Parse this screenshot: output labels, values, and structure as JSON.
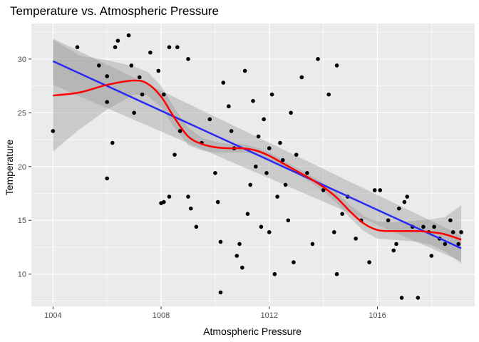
{
  "chart_data": {
    "type": "scatter",
    "title": "Temperature vs. Atmospheric Pressure",
    "xlabel": "Atmospheric Pressure",
    "ylabel": "Temperature",
    "xlim": [
      1003.2,
      1019.6
    ],
    "ylim": [
      7.0,
      33.3
    ],
    "x_ticks": [
      1004,
      1008,
      1012,
      1016
    ],
    "y_ticks": [
      10,
      15,
      20,
      25,
      30
    ],
    "grid": true,
    "legend": "none",
    "colors": {
      "panel_background": "#ebebeb",
      "grid_major": "#ffffff",
      "points": "#000000",
      "linear_fit": "#2a2af2",
      "smooth_fit": "#ff0000",
      "confidence_band": "#999999"
    },
    "points": [
      [
        1004.0,
        23.3
      ],
      [
        1004.9,
        31.1
      ],
      [
        1005.7,
        29.4
      ],
      [
        1006.0,
        28.4
      ],
      [
        1006.0,
        26.0
      ],
      [
        1006.0,
        18.9
      ],
      [
        1006.2,
        22.2
      ],
      [
        1006.3,
        31.1
      ],
      [
        1006.4,
        31.7
      ],
      [
        1006.8,
        32.2
      ],
      [
        1006.9,
        29.4
      ],
      [
        1007.0,
        25.0
      ],
      [
        1007.2,
        28.3
      ],
      [
        1007.3,
        26.7
      ],
      [
        1007.6,
        30.6
      ],
      [
        1007.9,
        28.9
      ],
      [
        1008.1,
        26.7
      ],
      [
        1008.3,
        31.1
      ],
      [
        1008.0,
        16.6
      ],
      [
        1008.1,
        16.7
      ],
      [
        1008.3,
        17.2
      ],
      [
        1008.5,
        21.1
      ],
      [
        1008.7,
        23.3
      ],
      [
        1008.6,
        31.1
      ],
      [
        1009.0,
        30.0
      ],
      [
        1009.0,
        17.2
      ],
      [
        1009.1,
        16.1
      ],
      [
        1009.3,
        14.4
      ],
      [
        1009.5,
        22.2
      ],
      [
        1009.8,
        24.4
      ],
      [
        1010.0,
        19.4
      ],
      [
        1010.1,
        16.7
      ],
      [
        1010.2,
        13.0
      ],
      [
        1010.2,
        8.3
      ],
      [
        1010.3,
        27.8
      ],
      [
        1010.5,
        25.6
      ],
      [
        1010.6,
        23.3
      ],
      [
        1010.7,
        21.7
      ],
      [
        1010.8,
        11.7
      ],
      [
        1010.9,
        12.8
      ],
      [
        1011.0,
        10.6
      ],
      [
        1011.1,
        28.9
      ],
      [
        1011.2,
        15.6
      ],
      [
        1011.3,
        18.3
      ],
      [
        1011.4,
        26.1
      ],
      [
        1011.5,
        20.0
      ],
      [
        1011.6,
        22.8
      ],
      [
        1011.7,
        14.4
      ],
      [
        1011.8,
        24.4
      ],
      [
        1011.9,
        19.4
      ],
      [
        1012.0,
        21.7
      ],
      [
        1012.0,
        13.9
      ],
      [
        1012.1,
        26.7
      ],
      [
        1012.2,
        10.0
      ],
      [
        1012.3,
        17.2
      ],
      [
        1012.4,
        22.2
      ],
      [
        1012.5,
        20.6
      ],
      [
        1012.6,
        18.3
      ],
      [
        1012.7,
        15.0
      ],
      [
        1012.8,
        25.0
      ],
      [
        1012.9,
        11.1
      ],
      [
        1013.0,
        21.1
      ],
      [
        1013.2,
        28.3
      ],
      [
        1013.4,
        19.4
      ],
      [
        1013.6,
        12.8
      ],
      [
        1013.8,
        30.0
      ],
      [
        1014.0,
        17.8
      ],
      [
        1014.2,
        26.7
      ],
      [
        1014.4,
        13.9
      ],
      [
        1014.5,
        29.4
      ],
      [
        1014.5,
        10.0
      ],
      [
        1014.7,
        15.6
      ],
      [
        1014.9,
        17.2
      ],
      [
        1015.2,
        13.3
      ],
      [
        1015.4,
        15.0
      ],
      [
        1015.7,
        11.1
      ],
      [
        1015.9,
        17.8
      ],
      [
        1016.1,
        17.8
      ],
      [
        1016.4,
        15.0
      ],
      [
        1016.6,
        12.2
      ],
      [
        1016.7,
        12.8
      ],
      [
        1016.8,
        16.1
      ],
      [
        1016.9,
        7.8
      ],
      [
        1017.0,
        16.7
      ],
      [
        1017.1,
        17.2
      ],
      [
        1017.3,
        14.4
      ],
      [
        1017.5,
        7.8
      ],
      [
        1017.7,
        14.4
      ],
      [
        1017.9,
        13.9
      ],
      [
        1018.0,
        11.7
      ],
      [
        1018.1,
        14.4
      ],
      [
        1018.3,
        13.3
      ],
      [
        1018.5,
        12.8
      ],
      [
        1018.7,
        15.0
      ],
      [
        1018.8,
        13.9
      ],
      [
        1019.0,
        12.8
      ],
      [
        1019.1,
        13.9
      ]
    ],
    "linear_fit": {
      "x": [
        1004.0,
        1019.1
      ],
      "y": [
        29.8,
        12.4
      ],
      "ci_lower": [
        27.6,
        11.2
      ],
      "ci_upper": [
        31.9,
        13.6
      ]
    },
    "smooth_fit": {
      "x": [
        1004.0,
        1005.0,
        1006.0,
        1007.0,
        1007.5,
        1008.0,
        1008.5,
        1009.0,
        1009.5,
        1010.0,
        1010.5,
        1011.0,
        1011.5,
        1012.0,
        1012.5,
        1013.0,
        1013.5,
        1014.0,
        1014.5,
        1015.0,
        1015.5,
        1016.0,
        1016.5,
        1017.0,
        1017.5,
        1018.0,
        1018.5,
        1019.1
      ],
      "y": [
        26.6,
        26.9,
        27.6,
        28.0,
        27.7,
        26.5,
        24.5,
        22.8,
        22.1,
        21.8,
        21.7,
        21.7,
        21.5,
        21.0,
        20.3,
        19.6,
        18.9,
        18.1,
        17.1,
        15.8,
        14.7,
        14.1,
        14.0,
        14.0,
        14.0,
        13.9,
        13.7,
        13.2
      ],
      "ci_lower": [
        21.4,
        23.5,
        25.3,
        26.7,
        26.6,
        25.5,
        23.6,
        22.0,
        21.5,
        21.3,
        21.3,
        21.3,
        21.2,
        20.7,
        20.0,
        19.3,
        18.6,
        17.7,
        16.6,
        15.2,
        14.0,
        13.3,
        13.2,
        13.1,
        13.0,
        12.7,
        12.1,
        11.0
      ],
      "ci_upper": [
        31.8,
        30.3,
        29.9,
        29.3,
        28.8,
        27.5,
        25.4,
        23.6,
        22.7,
        22.3,
        22.1,
        22.1,
        21.8,
        21.3,
        20.6,
        19.9,
        19.2,
        18.5,
        17.6,
        16.4,
        15.4,
        14.9,
        14.8,
        14.9,
        15.0,
        15.1,
        15.3,
        16.4
      ]
    }
  }
}
